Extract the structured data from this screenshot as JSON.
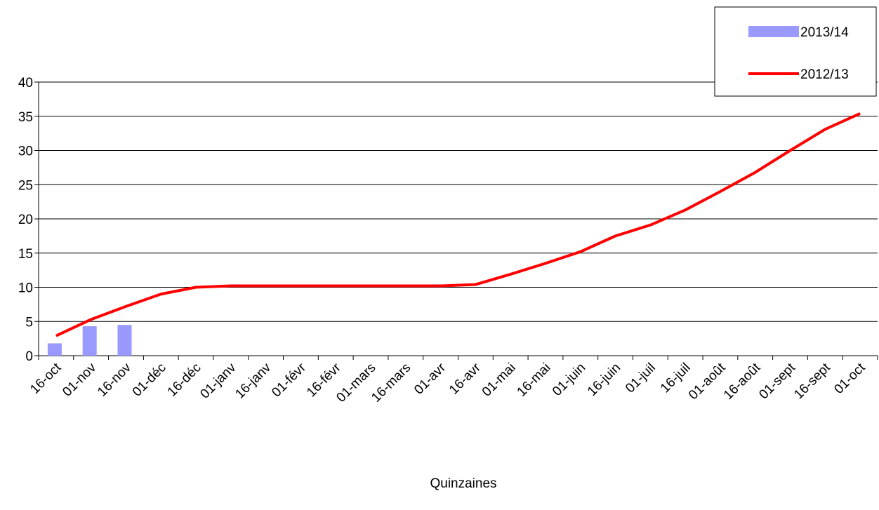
{
  "chart_data": {
    "type": "bar-line",
    "x_label": "Quinzaines",
    "categories": [
      "16-oct",
      "01-nov",
      "16-nov",
      "01-déc",
      "16-déc",
      "01-janv",
      "16-janv",
      "01-févr",
      "16-févr",
      "01-mars",
      "16-mars",
      "01-avr",
      "16-avr",
      "01-mai",
      "16-mai",
      "01-juin",
      "16-juin",
      "01-juil",
      "16-juil",
      "01-août",
      "16-août",
      "01-sept",
      "16-sept",
      "01-oct"
    ],
    "series": [
      {
        "name": "2013/14",
        "type": "bar",
        "color": "#9999ff",
        "values": [
          1.8,
          4.3,
          4.5,
          null,
          null,
          null,
          null,
          null,
          null,
          null,
          null,
          null,
          null,
          null,
          null,
          null,
          null,
          null,
          null,
          null,
          null,
          null,
          null,
          null
        ]
      },
      {
        "name": "2012/13",
        "type": "line",
        "color": "#ff0000",
        "values": [
          2.9,
          5.3,
          7.2,
          9.0,
          10.0,
          10.2,
          10.2,
          10.2,
          10.2,
          10.2,
          10.2,
          10.2,
          10.4,
          11.9,
          13.5,
          15.2,
          17.5,
          19.1,
          21.3,
          24.0,
          26.8,
          30.0,
          33.1,
          35.4
        ]
      }
    ],
    "ylim": [
      0,
      40
    ],
    "yticks": [
      0,
      5,
      10,
      15,
      20,
      25,
      30,
      35,
      40
    ],
    "grid": true,
    "legend": "top-right"
  }
}
